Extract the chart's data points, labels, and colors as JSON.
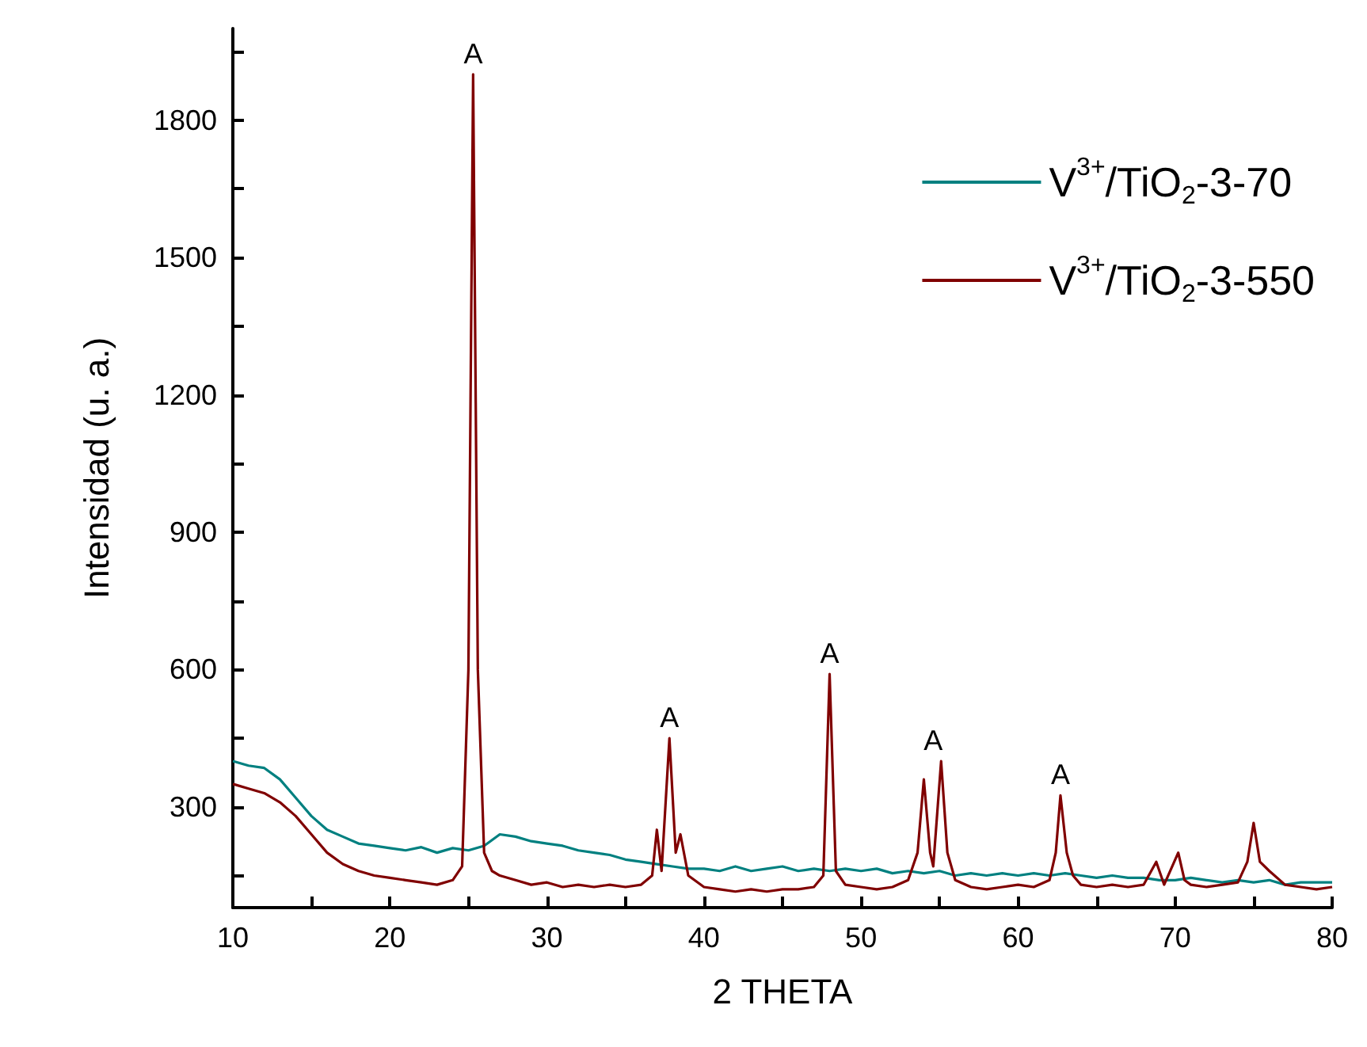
{
  "chart_data": {
    "type": "line",
    "xlabel": "2 THETA",
    "ylabel": "Intensidad (u. a.)",
    "xlim": [
      10,
      80
    ],
    "xticks": [
      10,
      {
        "value": 15,
        "label": null
      },
      20,
      {
        "value": 25,
        "label": null
      },
      30,
      {
        "value": 35,
        "label": null
      },
      40,
      {
        "value": 45,
        "label": null
      },
      50,
      {
        "value": 55,
        "label": null
      },
      60,
      {
        "value": 65,
        "label": null
      },
      70,
      {
        "value": 75,
        "label": null
      },
      80
    ],
    "ylim": [
      80,
      2000
    ],
    "yticks": [
      {
        "value": 150,
        "label": null
      },
      300,
      {
        "value": 450,
        "label": null
      },
      600,
      {
        "value": 750,
        "label": null
      },
      900,
      {
        "value": 1050,
        "label": null
      },
      1200,
      {
        "value": 1350,
        "label": null
      },
      1500,
      {
        "value": 1650,
        "label": null
      },
      1800,
      {
        "value": 1950,
        "label": null
      }
    ],
    "grid": false,
    "legend": "top right",
    "marker": "none",
    "line_style": "solid",
    "series": [
      {
        "name": "V$^{3+}$/TiO$_{2}$-3-70",
        "color": "#008080",
        "x": [
          10,
          11,
          12,
          13,
          14,
          15,
          16,
          17,
          18,
          19,
          20,
          21,
          22,
          23,
          24,
          25,
          26,
          27,
          28,
          29,
          30,
          31,
          32,
          33,
          34,
          35,
          36,
          37,
          38,
          39,
          40,
          41,
          42,
          43,
          44,
          45,
          46,
          47,
          48,
          49,
          50,
          51,
          52,
          53,
          54,
          55,
          56,
          57,
          58,
          59,
          60,
          61,
          62,
          63,
          64,
          65,
          66,
          67,
          68,
          69,
          70,
          71,
          72,
          73,
          74,
          75,
          76,
          77,
          78,
          79,
          80
        ],
        "values": [
          400,
          390,
          385,
          360,
          320,
          280,
          250,
          235,
          220,
          215,
          210,
          205,
          212,
          200,
          210,
          205,
          215,
          240,
          235,
          225,
          220,
          215,
          205,
          200,
          195,
          185,
          180,
          175,
          170,
          165,
          165,
          160,
          170,
          160,
          165,
          170,
          160,
          165,
          160,
          165,
          160,
          165,
          155,
          160,
          155,
          160,
          150,
          155,
          150,
          155,
          150,
          155,
          150,
          155,
          150,
          145,
          150,
          145,
          145,
          140,
          140,
          145,
          140,
          135,
          140,
          135,
          140,
          130,
          135,
          135,
          135
        ]
      },
      {
        "name": "V$^{3+}$/TiO$_{2}$-3-550",
        "color": "#800000",
        "x": [
          10,
          11,
          12,
          13,
          14,
          15,
          16,
          17,
          18,
          19,
          20,
          21,
          22,
          23,
          24,
          24.6,
          25,
          25.3,
          25.6,
          26,
          26.5,
          27,
          28,
          29,
          30,
          31,
          32,
          33,
          34,
          35,
          36,
          36.7,
          37,
          37.3,
          37.8,
          38.2,
          38.5,
          39,
          40,
          41,
          42,
          43,
          44,
          45,
          46,
          47,
          47.6,
          48,
          48.4,
          49,
          50,
          51,
          52,
          53,
          53.6,
          54,
          54.4,
          54.6,
          55.1,
          55.5,
          56,
          57,
          58,
          59,
          60,
          61,
          62,
          62.4,
          62.7,
          63.1,
          63.5,
          64,
          65,
          66,
          67,
          68,
          68.8,
          69.3,
          70.2,
          70.6,
          71,
          72,
          73,
          74,
          74.6,
          75,
          75.4,
          76,
          77,
          78,
          79,
          80
        ],
        "values": [
          350,
          340,
          330,
          310,
          280,
          240,
          200,
          175,
          160,
          150,
          145,
          140,
          135,
          130,
          140,
          170,
          600,
          1900,
          600,
          200,
          160,
          150,
          140,
          130,
          135,
          125,
          130,
          125,
          130,
          125,
          130,
          150,
          250,
          160,
          450,
          200,
          240,
          150,
          125,
          120,
          115,
          120,
          115,
          120,
          120,
          125,
          150,
          590,
          160,
          130,
          125,
          120,
          125,
          140,
          200,
          360,
          200,
          170,
          400,
          200,
          140,
          125,
          120,
          125,
          130,
          125,
          140,
          200,
          325,
          200,
          150,
          130,
          125,
          130,
          125,
          130,
          180,
          130,
          200,
          140,
          130,
          125,
          130,
          135,
          180,
          265,
          180,
          160,
          130,
          125,
          120,
          125
        ]
      }
    ],
    "annotations": [
      {
        "text": "A",
        "x": 25.3,
        "y": 1900
      },
      {
        "text": "A",
        "x": 37.8,
        "y": 450
      },
      {
        "text": "A",
        "x": 48.0,
        "y": 590
      },
      {
        "text": "A",
        "x": 54.6,
        "y": 400
      },
      {
        "text": "A",
        "x": 62.7,
        "y": 325
      }
    ]
  }
}
